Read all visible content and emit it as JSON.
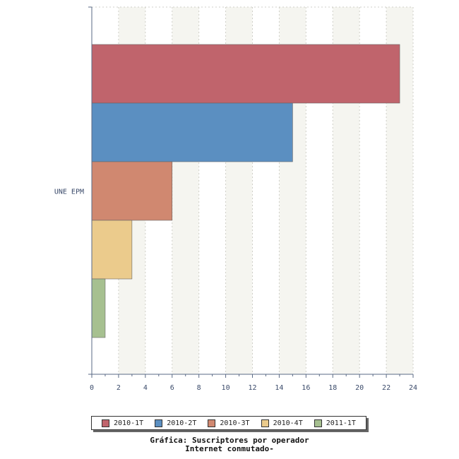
{
  "chart_data": {
    "type": "bar",
    "orientation": "horizontal",
    "categories": [
      "UNE EPM"
    ],
    "series": [
      {
        "name": "2010-1T",
        "values": [
          23
        ],
        "color": "#c0646c"
      },
      {
        "name": "2010-2T",
        "values": [
          15
        ],
        "color": "#5b8fc1"
      },
      {
        "name": "2010-3T",
        "values": [
          6
        ],
        "color": "#d08870"
      },
      {
        "name": "2010-4T",
        "values": [
          3
        ],
        "color": "#ebcb8c"
      },
      {
        "name": "2011-1T",
        "values": [
          1
        ],
        "color": "#a6c090"
      }
    ],
    "x_ticks": [
      "0",
      "2",
      "4",
      "6",
      "8",
      "10",
      "12",
      "14",
      "16",
      "18",
      "20",
      "22",
      "24"
    ],
    "xlim": [
      0,
      24
    ],
    "grid": true,
    "legend_position": "bottom",
    "title": "Gráfica: Suscriptores por operador",
    "subtitle": "Internet conmutado-"
  }
}
